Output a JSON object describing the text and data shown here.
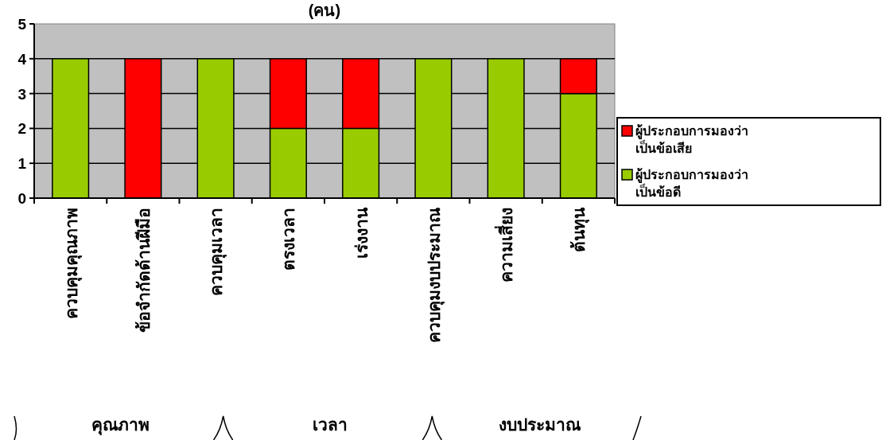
{
  "chart_data": {
    "type": "bar",
    "stacked": true,
    "title": "(คน)",
    "categories": [
      "ควบคุมคุณภาพ",
      "ข้อจำกัดด้านฝีมือ",
      "ควบคุมเวลา",
      "ตรงเวลา",
      "เร่งงาน",
      "ควบคุมงบประมาณ",
      "ความเสี่ยง",
      "ต้นทุน"
    ],
    "series": [
      {
        "name": "ผู้ประกอบการมองว่าเป็นข้อดี",
        "color": "#99cc00",
        "values": [
          4,
          0,
          4,
          2,
          2,
          4,
          4,
          3
        ]
      },
      {
        "name": "ผู้ประกอบการมองว่าเป็นข้อเสีย",
        "color": "#ff0000",
        "values": [
          0,
          4,
          0,
          2,
          2,
          0,
          0,
          1
        ]
      }
    ],
    "ylim": [
      0,
      5
    ],
    "yticks": [
      0,
      1,
      2,
      3,
      4,
      5
    ],
    "grid": "y",
    "legend": "right",
    "annotations": [
      "คุณภาพ",
      "เวลา",
      "งบประมาณ"
    ]
  }
}
